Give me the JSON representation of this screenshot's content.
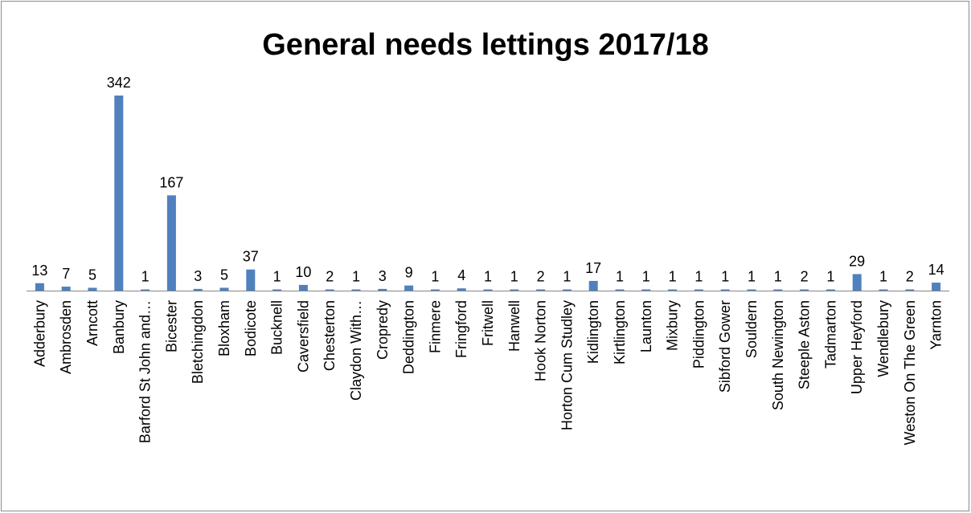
{
  "chart_data": {
    "type": "bar",
    "title": "General needs lettings 2017/18",
    "xlabel": "",
    "ylabel": "",
    "ylim": [
      0,
      342
    ],
    "grid": false,
    "legend": "none",
    "bar_color": "#4f81bd",
    "axis_color": "#868686",
    "categories": [
      "Adderbury",
      "Ambrosden",
      "Arncott",
      "Banbury",
      "Barford St John and…",
      "Bicester",
      "Bletchingdon",
      "Bloxham",
      "Bodicote",
      "Bucknell",
      "Caversfield",
      "Chesterton",
      "Claydon With…",
      "Cropredy",
      "Deddington",
      "Finmere",
      "Fringford",
      "Fritwell",
      "Hanwell",
      "Hook Norton",
      "Horton Cum Studley",
      "Kidlington",
      "Kirtlington",
      "Launton",
      "Mixbury",
      "Piddington",
      "Sibford Gower",
      "Souldern",
      "South Newington",
      "Steeple Aston",
      "Tadmarton",
      "Upper Heyford",
      "Wendlebury",
      "Weston On The Green",
      "Yarnton"
    ],
    "values": [
      13,
      7,
      5,
      342,
      1,
      167,
      3,
      5,
      37,
      1,
      10,
      2,
      1,
      3,
      9,
      1,
      4,
      1,
      1,
      2,
      1,
      17,
      1,
      1,
      1,
      1,
      1,
      1,
      1,
      2,
      1,
      29,
      1,
      2,
      14
    ]
  }
}
